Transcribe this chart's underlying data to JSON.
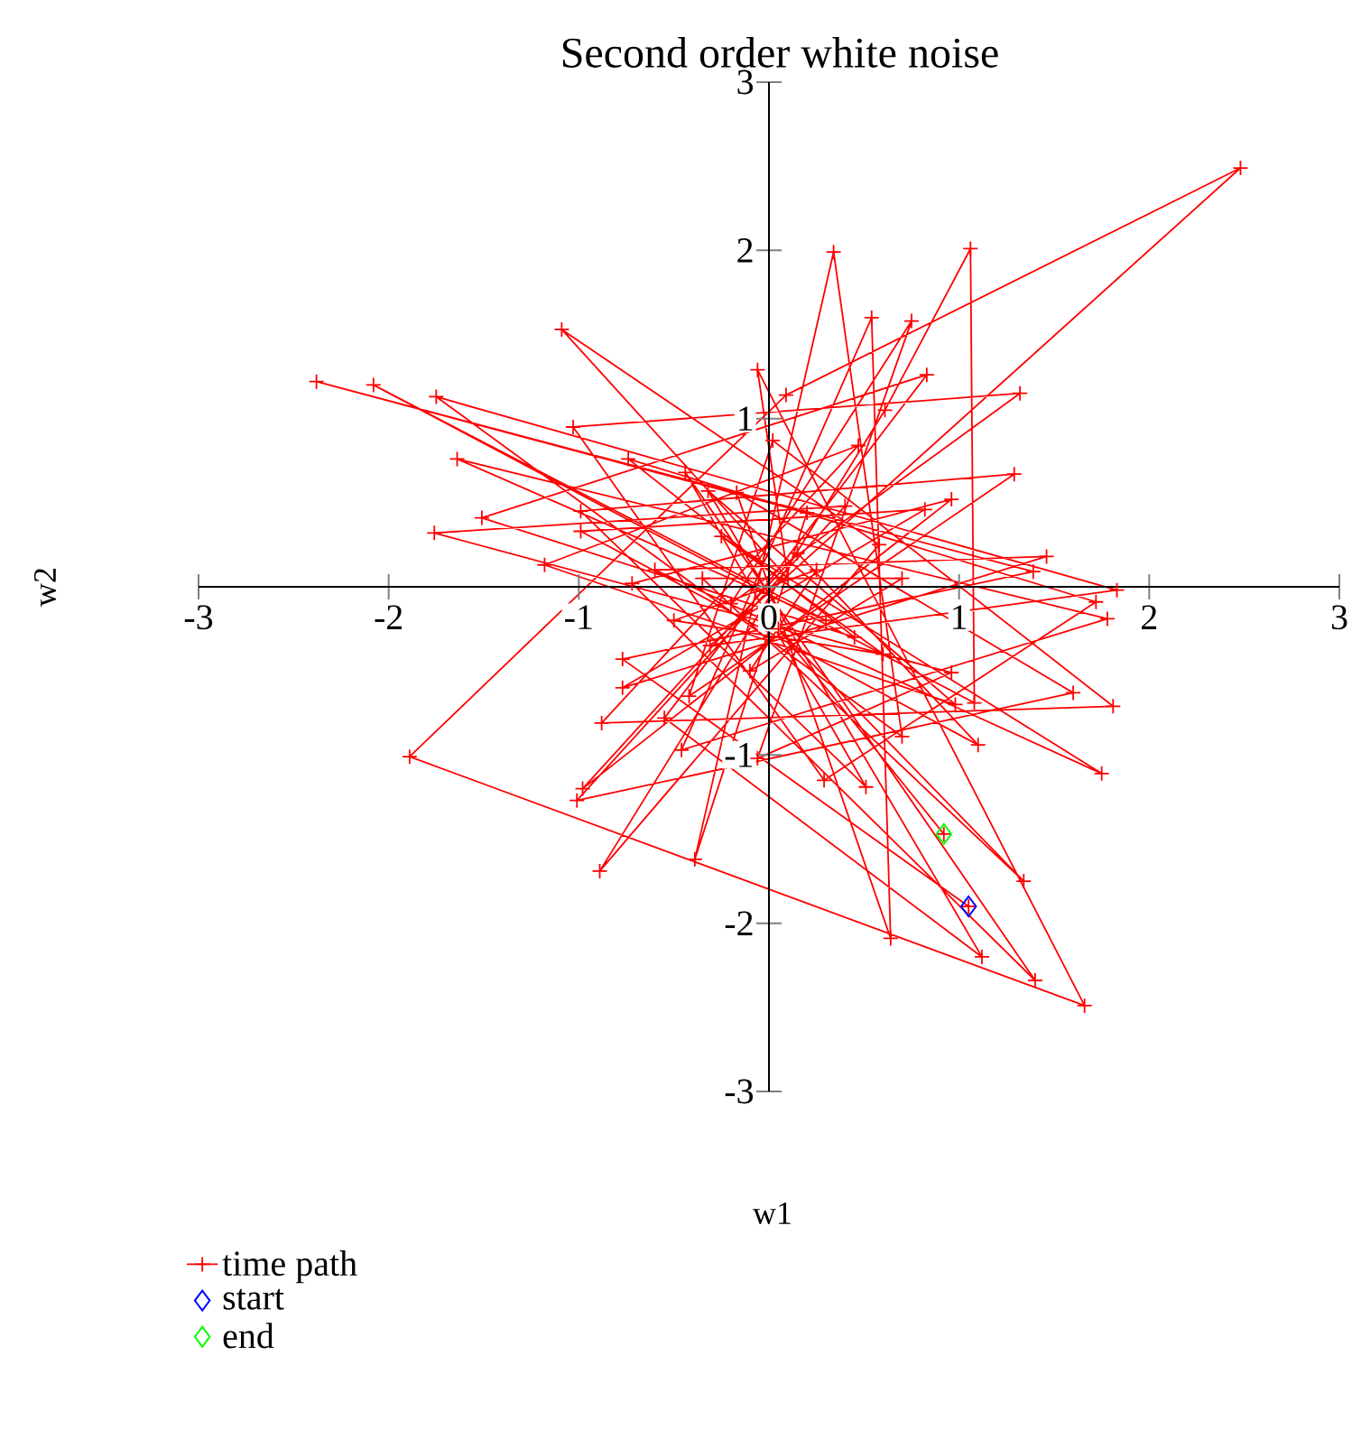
{
  "chart_data": {
    "type": "line",
    "title": "Second order white noise",
    "xlabel": "w1",
    "ylabel": "w2",
    "xlim": [
      -3,
      3
    ],
    "ylim": [
      -3,
      3
    ],
    "xticks": [
      -3,
      -2,
      -1,
      0,
      1,
      2,
      3
    ],
    "yticks": [
      -3,
      -2,
      -1,
      {
        "value": 0,
        "label": null
      },
      1,
      2,
      3
    ],
    "legend": "bottom left",
    "line_style": "solid",
    "series": [
      {
        "name": "time path",
        "marker": "cross",
        "color": "#ff0000",
        "x": [
          1.05,
          -0.77,
          1.39,
          -2.38,
          0.2,
          -0.39,
          0.34,
          0.7,
          -1.75,
          1.83,
          -0.31,
          2.48,
          0.09,
          -1.89,
          1.66,
          -0.06,
          0.1,
          -1.09,
          0.58,
          -0.89,
          0.61,
          1.06,
          1.08,
          -2.08,
          0.3,
          -1.64,
          1.78,
          -0.46,
          0.54,
          0.64,
          -0.17,
          1.6,
          -1.01,
          0.4,
          -1.76,
          0.96,
          -0.06,
          0.75,
          -0.2,
          1.32,
          -1.03,
          0.29,
          1.72,
          -0.74,
          0.45,
          -1.51,
          0.83,
          -0.55,
          1.12,
          -0.32,
          0.98,
          -1.18,
          0.47,
          -0.88,
          1.81,
          0.02,
          -0.42,
          1.29,
          -0.99,
          0.51,
          -0.44,
          1.4,
          -0.72,
          0.96,
          -0.98,
          0.15,
          1.1,
          -0.99,
          0.82,
          -0.77,
          1.46,
          -0.6,
          1.75,
          -0.25,
          0.6,
          -0.5,
          0.25,
          -0.1,
          0.7,
          -0.35,
          1.34,
          0.05,
          0.92
        ],
        "values": [
          -1.9,
          -0.43,
          0.09,
          1.22,
          0.44,
          -1.62,
          1.99,
          -0.89,
          1.13,
          -0.02,
          -0.35,
          2.49,
          1.14,
          -1.01,
          -2.49,
          1.29,
          0.05,
          1.53,
          0.25,
          -1.69,
          1.05,
          2.01,
          -0.69,
          1.2,
          -0.2,
          0.76,
          -0.19,
          -0.97,
          1.6,
          -2.09,
          0.56,
          -0.63,
          -1.27,
          0.48,
          0.32,
          -0.51,
          -1.02,
          1.58,
          -0.1,
          1.15,
          0.95,
          -1.15,
          -0.09,
          0.76,
          -0.3,
          0.41,
          1.26,
          -0.78,
          -2.2,
          0.57,
          -0.7,
          0.13,
          0.84,
          -0.81,
          -0.71,
          0.87,
          -0.65,
          0.67,
          0.45,
          -1.19,
          0.68,
          -2.34,
          0.02,
          0.52,
          -1.2,
          0.2,
          -0.94,
          0.33,
          0.46,
          -0.6,
          0.18,
          0.1,
          -1.11,
          0.3,
          -0.4,
          -0.2,
          0.1,
          -0.5,
          0.05,
          0.05,
          -1.75,
          -0.25,
          -1.47
        ]
      },
      {
        "name": "start",
        "type": "scatter",
        "marker": "diamond",
        "color": "#0000ff",
        "x": [
          1.05
        ],
        "values": [
          -1.9
        ]
      },
      {
        "name": "end",
        "type": "scatter",
        "marker": "diamond",
        "color": "#00ff00",
        "x": [
          0.92
        ],
        "values": [
          -1.47
        ]
      }
    ]
  }
}
